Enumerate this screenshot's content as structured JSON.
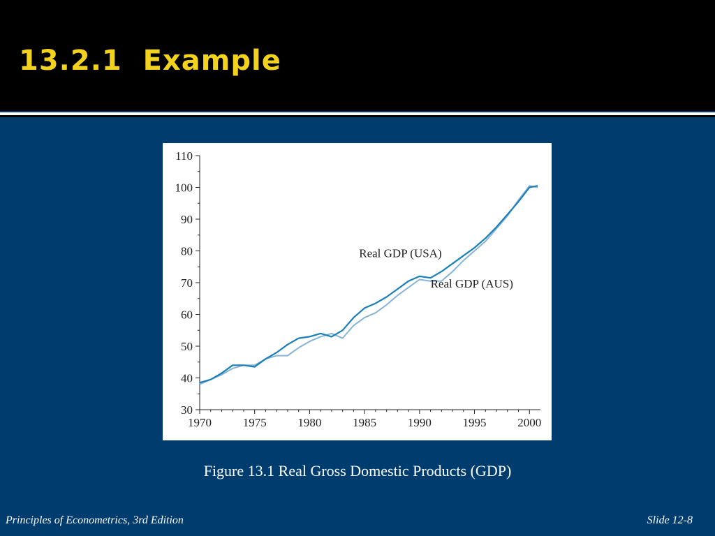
{
  "slide": {
    "title": "13.2.1  Example",
    "caption": "Figure 13.1 Real Gross Domestic Products (GDP)",
    "footer_left": "Principles of Econometrics, 3rd Edition",
    "footer_right": "Slide 12-8"
  },
  "colors": {
    "background": "#003d6e",
    "title_bar": "#000000",
    "title_text": "#f2d21c",
    "usa_line": "#1a7fb8",
    "aus_line": "#86b3d6"
  },
  "chart_data": {
    "type": "line",
    "title": "",
    "xlabel": "",
    "ylabel": "",
    "xlim": [
      1970,
      2001
    ],
    "ylim": [
      30,
      110
    ],
    "x_ticks": [
      1970,
      1975,
      1980,
      1985,
      1990,
      1995,
      2000
    ],
    "y_ticks": [
      30,
      40,
      50,
      60,
      70,
      80,
      90,
      100,
      110
    ],
    "grid": false,
    "series": [
      {
        "name": "Real GDP (USA)",
        "x": [
          1970,
          1971,
          1972,
          1973,
          1974,
          1975,
          1976,
          1977,
          1978,
          1979,
          1980,
          1981,
          1982,
          1983,
          1984,
          1985,
          1986,
          1987,
          1988,
          1989,
          1990,
          1991,
          1992,
          1993,
          1994,
          1995,
          1996,
          1997,
          1998,
          1999,
          2000,
          2000.75
        ],
        "y": [
          38.5,
          39.5,
          41.5,
          44.0,
          44.0,
          43.5,
          46.0,
          48.0,
          50.5,
          52.5,
          53.0,
          54.0,
          53.0,
          55.0,
          59.0,
          62.0,
          63.5,
          65.5,
          68.0,
          70.5,
          72.0,
          71.5,
          73.5,
          76.0,
          78.5,
          81.0,
          84.0,
          87.5,
          91.5,
          95.5,
          100.0,
          100.5
        ]
      },
      {
        "name": "Real GDP (AUS)",
        "x": [
          1970,
          1971,
          1972,
          1973,
          1974,
          1975,
          1976,
          1977,
          1978,
          1979,
          1980,
          1981,
          1982,
          1983,
          1984,
          1985,
          1986,
          1987,
          1988,
          1989,
          1990,
          1991,
          1992,
          1993,
          1994,
          1995,
          1996,
          1997,
          1998,
          1999,
          2000,
          2000.75
        ],
        "y": [
          38.0,
          39.5,
          41.0,
          43.0,
          44.0,
          44.0,
          46.0,
          47.0,
          47.0,
          49.5,
          51.5,
          53.0,
          54.0,
          52.5,
          56.5,
          59.0,
          60.5,
          63.0,
          66.0,
          68.5,
          71.0,
          70.5,
          70.5,
          73.5,
          77.0,
          80.0,
          83.0,
          87.0,
          91.0,
          96.0,
          100.5,
          100.0
        ]
      }
    ],
    "annotations": [
      {
        "text": "Real GDP (USA)",
        "x": 1984.5,
        "y": 78
      },
      {
        "text": "Real GDP (AUS)",
        "x": 1991.0,
        "y": 68.5
      }
    ]
  }
}
